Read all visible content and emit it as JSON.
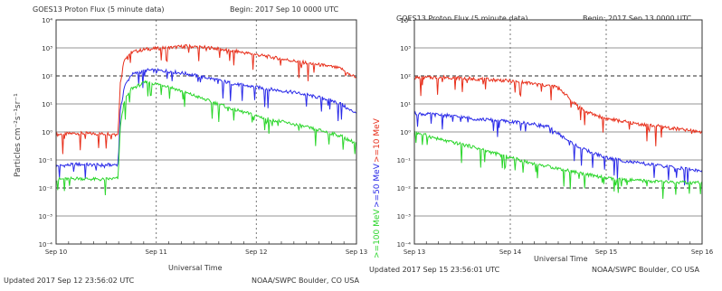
{
  "chart_data": [
    {
      "type": "line",
      "title": "GOES13 Proton Flux (5 minute data)",
      "begin_label": "Begin: 2017 Sep 10 0000 UTC",
      "ylabel": "Particles cm⁻²s⁻¹sr⁻¹",
      "xlabel": "Universal Time",
      "footer_left": "Updated 2017 Sep 12 23:56:02 UTC",
      "footer_right": "NOAA/SWPC Boulder, CO USA",
      "log_y": true,
      "ylim": [
        0.0001,
        10000
      ],
      "xlim": [
        0,
        3
      ],
      "y_ticks": [
        "10⁻⁴",
        "10⁻³",
        "10⁻²",
        "10⁻¹",
        "10⁰",
        "10¹",
        "10²",
        "10³",
        "10⁴"
      ],
      "x_ticks": [
        "Sep 10",
        "Sep 11",
        "Sep 12",
        "Sep 13"
      ],
      "grid": true,
      "series": [
        {
          "name": "",
          "color": "#e8301c",
          "x": [
            0,
            0.2,
            0.45,
            0.62,
            0.64,
            0.68,
            0.75,
            0.9,
            1.1,
            1.3,
            1.55,
            1.8,
            2.1,
            2.4,
            2.7,
            2.85,
            2.93,
            3.0
          ],
          "y": [
            0.8,
            0.9,
            0.85,
            0.9,
            50,
            400,
            700,
            900,
            1000,
            1150,
            1000,
            750,
            500,
            330,
            230,
            180,
            110,
            90
          ]
        },
        {
          "name": "",
          "color": "#2a2ae8",
          "x": [
            0,
            0.2,
            0.45,
            0.62,
            0.64,
            0.68,
            0.75,
            0.9,
            1.1,
            1.3,
            1.55,
            1.8,
            2.1,
            2.4,
            2.7,
            2.85,
            2.93,
            3.0
          ],
          "y": [
            0.06,
            0.07,
            0.065,
            0.07,
            5,
            40,
            110,
            160,
            150,
            120,
            80,
            50,
            35,
            25,
            15,
            10,
            6,
            5
          ]
        },
        {
          "name": "",
          "color": "#2bd62b",
          "x": [
            0,
            0.2,
            0.45,
            0.62,
            0.64,
            0.68,
            0.75,
            0.9,
            1.1,
            1.3,
            1.55,
            1.8,
            2.1,
            2.4,
            2.7,
            2.85,
            2.93,
            3.0
          ],
          "y": [
            0.02,
            0.022,
            0.02,
            0.022,
            1.5,
            12,
            35,
            60,
            45,
            25,
            12,
            6,
            3,
            1.8,
            1,
            0.7,
            0.5,
            0.4
          ]
        }
      ]
    },
    {
      "type": "line",
      "title": "GOES13 Proton Flux (5 minute data)",
      "begin_label": "Begin: 2017 Sep 13 0000 UTC",
      "ylabel": "",
      "xlabel": "Universal Time",
      "footer_left": "Updated 2017 Sep 15 23:56:01 UTC",
      "footer_right": "NOAA/SWPC Boulder, CO USA",
      "log_y": true,
      "ylim": [
        0.0001,
        10000
      ],
      "xlim": [
        0,
        3
      ],
      "y_ticks": [
        "10⁻⁴",
        "10⁻³",
        "10⁻²",
        "10⁻¹",
        "10⁰",
        "10¹",
        "10²",
        "10³",
        "10⁴"
      ],
      "x_ticks": [
        "Sep 13",
        "Sep 14",
        "Sep 15",
        "Sep 16"
      ],
      "grid": true,
      "legend": [
        {
          "label": ">=10 MeV",
          "color": "#e8301c"
        },
        {
          "label": ">=50 MeV",
          "color": "#2a2ae8"
        },
        {
          "label": ">=100 MeV",
          "color": "#2bd62b"
        }
      ],
      "series": [
        {
          "name": ">=10 MeV",
          "color": "#e8301c",
          "x": [
            0,
            0.3,
            0.6,
            0.9,
            1.2,
            1.5,
            1.65,
            1.8,
            2.0,
            2.3,
            2.6,
            2.8,
            3.0
          ],
          "y": [
            85,
            90,
            80,
            70,
            55,
            40,
            12,
            5,
            3,
            2,
            1.5,
            1.2,
            1
          ]
        },
        {
          "name": ">=50 MeV",
          "color": "#2a2ae8",
          "x": [
            0,
            0.3,
            0.6,
            0.9,
            1.2,
            1.4,
            1.6,
            1.75,
            2.0,
            2.3,
            2.6,
            2.8,
            3.0
          ],
          "y": [
            4.5,
            4,
            3,
            2.5,
            2,
            1.5,
            0.5,
            0.25,
            0.12,
            0.08,
            0.06,
            0.05,
            0.04
          ]
        },
        {
          "name": ">=100 MeV",
          "color": "#2bd62b",
          "x": [
            0,
            0.3,
            0.6,
            0.9,
            1.2,
            1.5,
            1.8,
            2.1,
            2.4,
            2.7,
            3.0
          ],
          "y": [
            1,
            0.5,
            0.3,
            0.15,
            0.08,
            0.05,
            0.03,
            0.02,
            0.018,
            0.016,
            0.015
          ]
        }
      ]
    }
  ]
}
